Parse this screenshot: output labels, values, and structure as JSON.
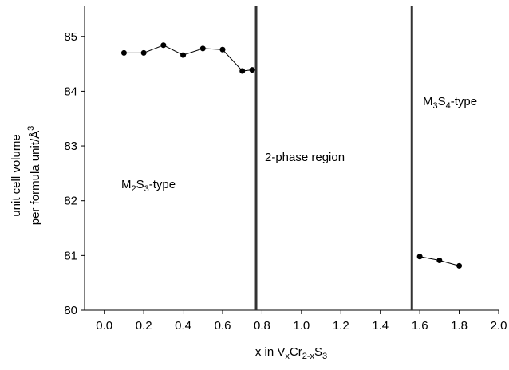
{
  "chart_data": {
    "type": "line",
    "x_label": [
      "x in V",
      "x",
      "Cr",
      "2-x",
      "S",
      "3"
    ],
    "y_label": [
      "unit cell volume",
      "per formula unit/Å",
      "3"
    ],
    "annotations": [
      [
        "M",
        "2",
        "S",
        "3",
        "-type"
      ],
      [
        "2-phase region"
      ],
      [
        "M",
        "3",
        "S",
        "4",
        "-type"
      ]
    ],
    "series": [
      {
        "color": "#000000",
        "x": [
          0.1,
          0.2,
          0.3,
          0.4,
          0.5,
          0.6,
          0.7,
          0.75
        ],
        "values": [
          84.7,
          84.7,
          84.84,
          84.66,
          84.78,
          84.76,
          84.37,
          84.39
        ]
      },
      {
        "color": "#000000",
        "x": [
          1.6,
          1.7,
          1.8
        ],
        "values": [
          80.98,
          80.91,
          80.81
        ]
      }
    ],
    "vlines": [
      0.77,
      1.56
    ],
    "vline_color": "#333333",
    "xlim": [
      -0.1,
      2.0
    ],
    "xticks": [
      {
        "value": 0,
        "label": "0.0"
      },
      {
        "value": 0.2,
        "label": "0.2"
      },
      {
        "value": 0.4,
        "label": "0.4"
      },
      {
        "value": 0.6,
        "label": "0.6"
      },
      {
        "value": 0.8,
        "label": "0.8"
      },
      {
        "value": 1,
        "label": "1.0"
      },
      {
        "value": 1.2,
        "label": "1.2"
      },
      {
        "value": 1.4,
        "label": "1.4"
      },
      {
        "value": 1.6,
        "label": "1.6"
      },
      {
        "value": 1.8,
        "label": "1.8"
      },
      {
        "value": 2,
        "label": "2.0"
      }
    ],
    "ylim": [
      80,
      85.55
    ],
    "yticks": [
      80,
      81,
      82,
      83,
      84,
      85
    ]
  }
}
